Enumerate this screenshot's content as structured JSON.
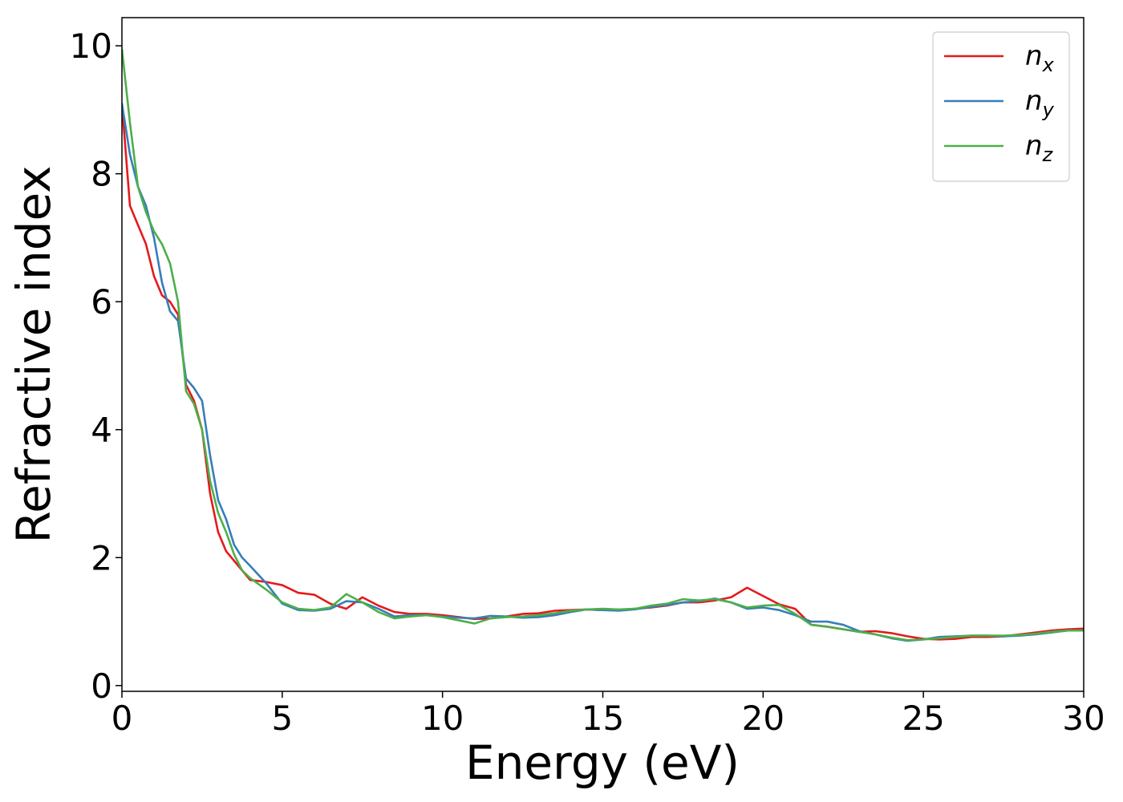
{
  "chart_data": {
    "type": "line",
    "xlabel": "Energy (eV)",
    "ylabel": "Refractive index",
    "x": [
      0,
      0.25,
      0.5,
      0.75,
      1,
      1.25,
      1.5,
      1.75,
      2,
      2.25,
      2.5,
      2.75,
      3,
      3.25,
      3.5,
      3.75,
      4,
      4.5,
      5,
      5.5,
      6,
      6.5,
      7,
      7.5,
      8,
      8.5,
      9,
      9.5,
      10,
      10.5,
      11,
      11.5,
      12,
      12.5,
      13,
      13.5,
      14,
      14.5,
      15,
      15.5,
      16,
      16.5,
      17,
      17.5,
      18,
      18.5,
      19,
      19.5,
      20,
      20.5,
      21,
      21.5,
      22,
      22.5,
      23,
      23.5,
      24,
      24.5,
      25,
      25.5,
      26,
      26.5,
      27,
      27.5,
      28,
      28.5,
      29,
      29.5,
      30
    ],
    "series": [
      {
        "name": "nx",
        "color": "#e41a1c",
        "values": [
          9.1,
          7.5,
          7.2,
          6.9,
          6.4,
          6.1,
          6.0,
          5.8,
          4.7,
          4.45,
          4.0,
          3.0,
          2.4,
          2.1,
          1.95,
          1.8,
          1.65,
          1.62,
          1.57,
          1.45,
          1.42,
          1.28,
          1.2,
          1.38,
          1.25,
          1.15,
          1.12,
          1.12,
          1.1,
          1.07,
          1.04,
          1.05,
          1.08,
          1.12,
          1.13,
          1.17,
          1.18,
          1.19,
          1.18,
          1.18,
          1.2,
          1.22,
          1.25,
          1.3,
          1.3,
          1.33,
          1.38,
          1.53,
          1.4,
          1.27,
          1.2,
          0.95,
          0.92,
          0.88,
          0.84,
          0.85,
          0.82,
          0.77,
          0.73,
          0.72,
          0.73,
          0.76,
          0.76,
          0.77,
          0.8,
          0.83,
          0.86,
          0.88,
          0.89
        ]
      },
      {
        "name": "ny",
        "color": "#377eb8",
        "values": [
          9.1,
          8.3,
          7.8,
          7.5,
          7.0,
          6.3,
          5.85,
          5.7,
          4.8,
          4.65,
          4.45,
          3.6,
          2.9,
          2.6,
          2.2,
          2.0,
          1.87,
          1.6,
          1.28,
          1.18,
          1.17,
          1.2,
          1.32,
          1.3,
          1.2,
          1.08,
          1.1,
          1.1,
          1.08,
          1.06,
          1.05,
          1.09,
          1.08,
          1.06,
          1.07,
          1.1,
          1.15,
          1.19,
          1.18,
          1.17,
          1.19,
          1.23,
          1.26,
          1.3,
          1.32,
          1.36,
          1.3,
          1.2,
          1.22,
          1.18,
          1.1,
          1.0,
          1.0,
          0.95,
          0.85,
          0.8,
          0.74,
          0.7,
          0.72,
          0.76,
          0.77,
          0.78,
          0.78,
          0.77,
          0.78,
          0.8,
          0.83,
          0.86,
          0.86
        ]
      },
      {
        "name": "nz",
        "color": "#4daf4a",
        "values": [
          9.95,
          8.8,
          7.8,
          7.4,
          7.1,
          6.9,
          6.6,
          6.0,
          4.6,
          4.4,
          4.0,
          3.2,
          2.7,
          2.4,
          2.05,
          1.8,
          1.68,
          1.5,
          1.3,
          1.2,
          1.18,
          1.22,
          1.43,
          1.3,
          1.15,
          1.05,
          1.08,
          1.1,
          1.07,
          1.02,
          0.97,
          1.05,
          1.07,
          1.08,
          1.1,
          1.13,
          1.17,
          1.19,
          1.2,
          1.19,
          1.2,
          1.25,
          1.28,
          1.35,
          1.33,
          1.35,
          1.3,
          1.22,
          1.25,
          1.26,
          1.12,
          0.95,
          0.92,
          0.88,
          0.84,
          0.8,
          0.75,
          0.71,
          0.72,
          0.74,
          0.76,
          0.78,
          0.78,
          0.78,
          0.79,
          0.81,
          0.84,
          0.86,
          0.86
        ]
      }
    ],
    "xlim": [
      0,
      30
    ],
    "xticks": [
      0,
      5,
      10,
      15,
      20,
      25,
      30
    ],
    "ylim": [
      -0.09,
      10.44
    ],
    "yticks": [
      0,
      2,
      4,
      6,
      8,
      10
    ],
    "grid": false,
    "legend": "upper right"
  }
}
